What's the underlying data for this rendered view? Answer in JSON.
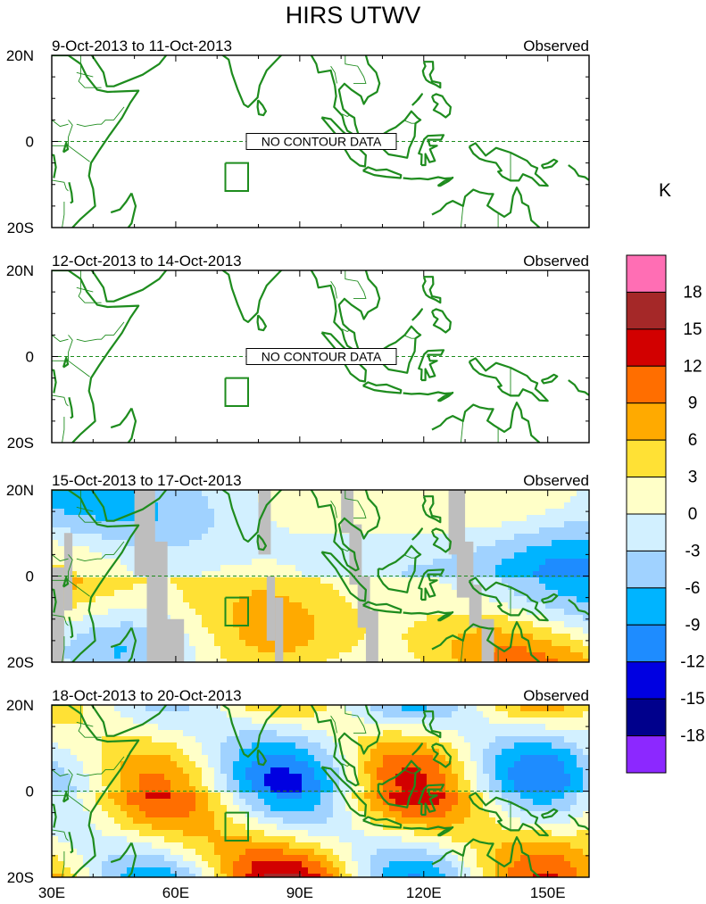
{
  "title": "HIRS UTWV",
  "colorbar": {
    "unit": "K",
    "labels": [
      "18",
      "15",
      "12",
      "9",
      "6",
      "3",
      "0",
      "-3",
      "-6",
      "-9",
      "-12",
      "-15",
      "-18"
    ],
    "colors": [
      "#ff6eb4",
      "#a52828",
      "#d20000",
      "#ff6e00",
      "#ffaa00",
      "#ffe135",
      "#ffffc8",
      "#d2f0ff",
      "#a0d2ff",
      "#00b4ff",
      "#1e8cff",
      "#0000e1",
      "#00008c",
      "#8c28ff"
    ]
  },
  "axes": {
    "x_ticks": [
      "30E",
      "60E",
      "90E",
      "120E",
      "150E"
    ],
    "y_ticks": [
      "20N",
      "0",
      "20S"
    ]
  },
  "panels": [
    {
      "date_range": "9-Oct-2013 to 11-Oct-2013",
      "status": "Observed",
      "message": "NO CONTOUR DATA"
    },
    {
      "date_range": "12-Oct-2013 to 14-Oct-2013",
      "status": "Observed",
      "message": "NO CONTOUR DATA"
    },
    {
      "date_range": "15-Oct-2013 to 17-Oct-2013",
      "status": "Observed",
      "message": ""
    },
    {
      "date_range": "18-Oct-2013 to 20-Oct-2013",
      "status": "Observed",
      "message": ""
    }
  ],
  "map_style": {
    "coast_color": "#1e8c1e",
    "equator_color": "#1e8c1e",
    "missing_color": "#bebebe"
  }
}
